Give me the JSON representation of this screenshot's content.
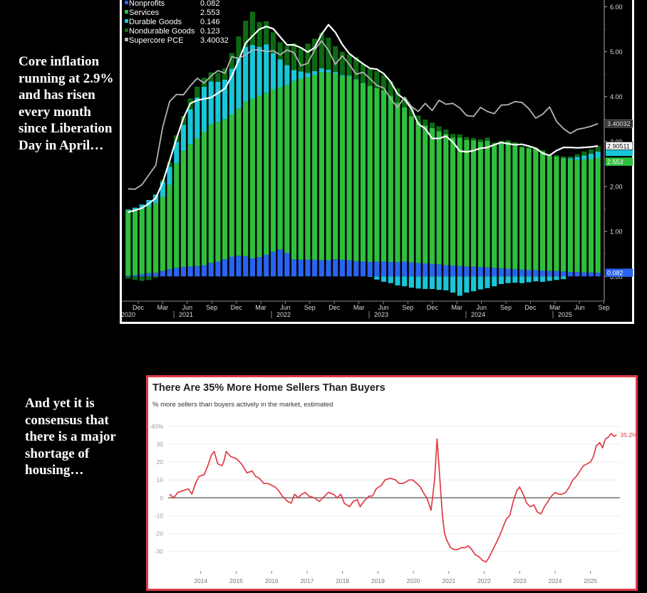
{
  "captions": {
    "top": "Core inflation running at 2.9% and has risen every month since Liberation Day in April…",
    "bottom": "And yet it is consensus that there is a major shortage of housing…"
  },
  "chart_data": [
    {
      "type": "bar",
      "stacked": true,
      "legend": [
        {
          "name": "Nonprofits",
          "value": "0.082",
          "color": "#2a63f0"
        },
        {
          "name": "Services",
          "value": "2.553",
          "color": "#2fbf3e"
        },
        {
          "name": "Durable Goods",
          "value": "0.146",
          "color": "#19c6d6"
        },
        {
          "name": "Nondurable Goods",
          "value": "0.123",
          "color": "#0d6a12"
        },
        {
          "name": "Supercore PCE",
          "value": "3.40032",
          "color": "#b4b4b4"
        }
      ],
      "y_ticks": [
        "6.00",
        "5.00",
        "4.00",
        "3.00",
        "2.00",
        "1.00",
        "0.00"
      ],
      "ylim": [
        -0.55,
        6.15
      ],
      "x_tick_labels": [
        "Dec",
        "Mar",
        "Jun",
        "Sep",
        "Dec",
        "Mar",
        "Jun",
        "Sep",
        "Dec",
        "Mar",
        "Jun",
        "Sep",
        "Dec",
        "Mar",
        "Jun",
        "Sep",
        "Dec",
        "Mar",
        "Jun",
        "Sep"
      ],
      "x_year_labels": [
        "2020",
        "2021",
        "2022",
        "2023",
        "2024",
        "2025"
      ],
      "right_labels": [
        {
          "text": "3.40032",
          "value": 3.40032,
          "style": "supercore"
        },
        {
          "text": "2.90511",
          "value": 2.90511,
          "style": "total"
        },
        {
          "text": "2.553",
          "value": 2.553,
          "style": "services"
        },
        {
          "text": "0.082",
          "value": 0.082,
          "style": "nonprofits"
        }
      ],
      "series": [
        {
          "name": "Nonprofits",
          "values": [
            0.02,
            0.03,
            0.05,
            0.07,
            0.08,
            0.12,
            0.16,
            0.19,
            0.21,
            0.22,
            0.23,
            0.25,
            0.3,
            0.33,
            0.38,
            0.44,
            0.46,
            0.45,
            0.4,
            0.43,
            0.48,
            0.55,
            0.6,
            0.52,
            0.38,
            0.37,
            0.37,
            0.37,
            0.36,
            0.36,
            0.38,
            0.37,
            0.36,
            0.34,
            0.33,
            0.32,
            0.33,
            0.33,
            0.32,
            0.32,
            0.33,
            0.31,
            0.3,
            0.29,
            0.28,
            0.27,
            0.25,
            0.24,
            0.23,
            0.22,
            0.22,
            0.21,
            0.2,
            0.19,
            0.18,
            0.17,
            0.16,
            0.15,
            0.14,
            0.14,
            0.13,
            0.12,
            0.12,
            0.11,
            0.1,
            0.1,
            0.09,
            0.09,
            0.08
          ]
        },
        {
          "name": "Services",
          "values": [
            1.45,
            1.45,
            1.45,
            1.48,
            1.55,
            1.65,
            1.88,
            2.32,
            2.58,
            2.72,
            2.84,
            2.97,
            3.08,
            3.1,
            3.12,
            3.16,
            3.27,
            3.43,
            3.55,
            3.59,
            3.6,
            3.61,
            3.61,
            3.74,
            3.97,
            4.03,
            4.06,
            4.11,
            4.19,
            4.18,
            4.14,
            4.09,
            4.09,
            4.04,
            3.97,
            3.92,
            3.86,
            3.81,
            3.7,
            3.54,
            3.43,
            3.25,
            3.14,
            3.07,
            3.02,
            2.96,
            2.92,
            2.85,
            2.86,
            2.82,
            2.81,
            2.78,
            2.82,
            2.73,
            2.79,
            2.82,
            2.8,
            2.72,
            2.71,
            2.7,
            2.65,
            2.56,
            2.55,
            2.53,
            2.5,
            2.49,
            2.51,
            2.52,
            2.553
          ]
        },
        {
          "name": "Durable Goods",
          "values": [
            0.02,
            0.05,
            0.1,
            0.15,
            0.19,
            0.33,
            0.4,
            0.48,
            0.58,
            0.78,
            0.91,
            1.0,
            0.96,
            0.9,
            0.88,
            1.02,
            1.15,
            1.23,
            1.2,
            1.09,
            1.08,
            0.81,
            0.62,
            0.44,
            0.24,
            0.16,
            0.1,
            0.09,
            0.08,
            0.06,
            0.03,
            0.02,
            0.02,
            0.01,
            0.01,
            -0.01,
            -0.07,
            -0.12,
            -0.15,
            -0.2,
            -0.22,
            -0.25,
            -0.27,
            -0.28,
            -0.28,
            -0.3,
            -0.31,
            -0.36,
            -0.43,
            -0.36,
            -0.33,
            -0.29,
            -0.26,
            -0.22,
            -0.17,
            -0.15,
            -0.14,
            -0.15,
            -0.13,
            -0.11,
            -0.12,
            -0.1,
            -0.08,
            -0.06,
            0.03,
            0.07,
            0.09,
            0.12,
            0.146
          ]
        },
        {
          "name": "Nondurable Goods",
          "values": [
            -0.05,
            -0.08,
            -0.1,
            -0.08,
            -0.03,
            0.05,
            0.1,
            0.15,
            0.2,
            0.24,
            0.24,
            0.2,
            0.2,
            0.2,
            0.25,
            0.35,
            0.46,
            0.58,
            0.74,
            0.55,
            0.52,
            0.46,
            0.38,
            0.43,
            0.6,
            0.52,
            0.65,
            0.72,
            0.79,
            0.71,
            0.57,
            0.52,
            0.47,
            0.49,
            0.41,
            0.38,
            0.38,
            0.34,
            0.32,
            0.32,
            0.22,
            0.18,
            0.14,
            0.13,
            0.12,
            0.11,
            0.1,
            0.08,
            0.07,
            0.06,
            0.05,
            0.06,
            0.07,
            0.06,
            0.05,
            0.04,
            0.03,
            0.03,
            0.03,
            0.03,
            0.03,
            0.03,
            0.03,
            0.03,
            0.04,
            0.06,
            0.09,
            0.1,
            0.123
          ]
        }
      ],
      "lines": [
        {
          "name": "Core PCE",
          "color": "#ffffff",
          "values": [
            1.43,
            1.47,
            1.52,
            1.62,
            1.74,
            2.09,
            2.57,
            3.07,
            3.52,
            3.85,
            3.92,
            3.95,
            3.98,
            4.08,
            4.18,
            4.46,
            4.81,
            5.19,
            5.35,
            5.5,
            5.56,
            5.51,
            5.33,
            5.15,
            5.15,
            5.09,
            4.99,
            5.09,
            5.39,
            5.6,
            5.43,
            5.16,
            4.96,
            4.84,
            4.73,
            4.63,
            4.61,
            4.51,
            4.33,
            4.06,
            3.94,
            3.73,
            3.39,
            3.29,
            3.07,
            3.07,
            3.12,
            2.99,
            2.79,
            2.77,
            2.8,
            2.85,
            2.87,
            2.93,
            2.98,
            2.95,
            2.93,
            2.94,
            2.9,
            2.85,
            2.74,
            2.69,
            2.8,
            2.87,
            2.87,
            2.86,
            2.87,
            2.88,
            2.90511
          ]
        },
        {
          "name": "Supercore PCE",
          "color": "#b4b4b4",
          "values": [
            1.95,
            1.94,
            2.04,
            2.26,
            2.47,
            3.32,
            3.89,
            4.05,
            4.04,
            4.24,
            4.41,
            4.3,
            4.46,
            4.58,
            4.52,
            4.89,
            4.85,
            4.93,
            5.04,
            5.04,
            5.0,
            5.02,
            4.93,
            5.04,
            4.98,
            4.69,
            4.74,
            5.04,
            5.24,
            5.03,
            4.72,
            4.91,
            4.72,
            4.5,
            4.54,
            4.4,
            4.25,
            4.19,
            3.95,
            3.76,
            3.99,
            3.78,
            3.67,
            3.85,
            3.69,
            3.92,
            3.83,
            3.85,
            3.75,
            3.58,
            3.56,
            3.76,
            3.67,
            3.62,
            3.81,
            3.82,
            3.89,
            3.87,
            3.73,
            3.52,
            3.61,
            3.77,
            3.45,
            3.29,
            3.18,
            3.27,
            3.3,
            3.34,
            3.40032
          ]
        }
      ]
    },
    {
      "type": "line",
      "title": "There Are 35% More Home Sellers Than Buyers",
      "subtitle": "% more sellers than buyers actively in the market, estimated",
      "y_ticks": [
        {
          "label": "40%",
          "value": 40
        },
        {
          "label": "30",
          "value": 30
        },
        {
          "label": "20",
          "value": 20
        },
        {
          "label": "10",
          "value": 10
        },
        {
          "label": "0",
          "value": 0
        },
        {
          "label": "-10",
          "value": -10
        },
        {
          "label": "-20",
          "value": -20
        },
        {
          "label": "-30",
          "value": -30
        }
      ],
      "ylim": [
        -41,
        44
      ],
      "xlim": [
        2013.08,
        2025.83
      ],
      "x_ticks": [
        "2014",
        "2015",
        "2016",
        "2017",
        "2018",
        "2019",
        "2020",
        "2021",
        "2022",
        "2023",
        "2024",
        "2025"
      ],
      "end_label": "35.2%",
      "color": "#e03a45",
      "points": [
        [
          2013.12,
          2.0
        ],
        [
          2013.24,
          0.0
        ],
        [
          2013.35,
          3.0
        ],
        [
          2013.5,
          4.0
        ],
        [
          2013.65,
          5.0
        ],
        [
          2013.75,
          2.0
        ],
        [
          2013.85,
          8.0
        ],
        [
          2013.95,
          12.0
        ],
        [
          2014.1,
          13.0
        ],
        [
          2014.2,
          18.0
        ],
        [
          2014.3,
          24.0
        ],
        [
          2014.38,
          26.0
        ],
        [
          2014.48,
          19.0
        ],
        [
          2014.6,
          18.0
        ],
        [
          2014.66,
          21.0
        ],
        [
          2014.72,
          26.0
        ],
        [
          2014.85,
          23.0
        ],
        [
          2015.0,
          22.0
        ],
        [
          2015.15,
          19.0
        ],
        [
          2015.3,
          14.0
        ],
        [
          2015.45,
          15.0
        ],
        [
          2015.55,
          12.0
        ],
        [
          2015.65,
          11.0
        ],
        [
          2015.78,
          8.0
        ],
        [
          2015.9,
          8.0
        ],
        [
          2016.0,
          7.0
        ],
        [
          2016.1,
          6.0
        ],
        [
          2016.2,
          4.0
        ],
        [
          2016.3,
          1.0
        ],
        [
          2016.45,
          -2.0
        ],
        [
          2016.55,
          -3.0
        ],
        [
          2016.65,
          2.0
        ],
        [
          2016.75,
          0.0
        ],
        [
          2016.85,
          2.0
        ],
        [
          2016.95,
          3.0
        ],
        [
          2017.05,
          1.0
        ],
        [
          2017.2,
          0.0
        ],
        [
          2017.35,
          -2.0
        ],
        [
          2017.5,
          1.0
        ],
        [
          2017.6,
          3.0
        ],
        [
          2017.75,
          2.0
        ],
        [
          2017.85,
          0.0
        ],
        [
          2017.95,
          2.0
        ],
        [
          2018.05,
          -3.0
        ],
        [
          2018.2,
          -5.0
        ],
        [
          2018.3,
          -2.0
        ],
        [
          2018.42,
          -1.0
        ],
        [
          2018.5,
          -5.0
        ],
        [
          2018.6,
          -2.0
        ],
        [
          2018.75,
          1.0
        ],
        [
          2018.85,
          1.0
        ],
        [
          2018.95,
          5.0
        ],
        [
          2019.1,
          7.0
        ],
        [
          2019.2,
          10.0
        ],
        [
          2019.35,
          11.0
        ],
        [
          2019.5,
          10.0
        ],
        [
          2019.6,
          8.0
        ],
        [
          2019.7,
          8.0
        ],
        [
          2019.8,
          9.0
        ],
        [
          2019.88,
          10.0
        ],
        [
          2019.98,
          10.0
        ],
        [
          2020.1,
          8.0
        ],
        [
          2020.2,
          6.0
        ],
        [
          2020.28,
          3.0
        ],
        [
          2020.38,
          0.0
        ],
        [
          2020.45,
          -4.0
        ],
        [
          2020.5,
          -7.0
        ],
        [
          2020.6,
          10.0
        ],
        [
          2020.67,
          33.0
        ],
        [
          2020.75,
          10.0
        ],
        [
          2020.82,
          -10.0
        ],
        [
          2020.88,
          -20.0
        ],
        [
          2020.95,
          -24.0
        ],
        [
          2021.05,
          -28.0
        ],
        [
          2021.15,
          -29.0
        ],
        [
          2021.25,
          -29.0
        ],
        [
          2021.35,
          -28.0
        ],
        [
          2021.45,
          -28.0
        ],
        [
          2021.55,
          -27.0
        ],
        [
          2021.65,
          -29.0
        ],
        [
          2021.75,
          -32.0
        ],
        [
          2021.85,
          -33.0
        ],
        [
          2021.95,
          -35.0
        ],
        [
          2022.05,
          -36.0
        ],
        [
          2022.12,
          -34.0
        ],
        [
          2022.22,
          -30.0
        ],
        [
          2022.32,
          -26.0
        ],
        [
          2022.42,
          -22.0
        ],
        [
          2022.52,
          -17.0
        ],
        [
          2022.62,
          -12.0
        ],
        [
          2022.72,
          -10.0
        ],
        [
          2022.82,
          -2.0
        ],
        [
          2022.92,
          4.0
        ],
        [
          2023.0,
          6.0
        ],
        [
          2023.1,
          2.0
        ],
        [
          2023.2,
          -3.0
        ],
        [
          2023.3,
          -5.0
        ],
        [
          2023.4,
          -4.0
        ],
        [
          2023.5,
          -8.0
        ],
        [
          2023.6,
          -9.0
        ],
        [
          2023.7,
          -5.0
        ],
        [
          2023.8,
          -2.0
        ],
        [
          2023.9,
          1.0
        ],
        [
          2024.0,
          3.0
        ],
        [
          2024.1,
          2.0
        ],
        [
          2024.2,
          2.0
        ],
        [
          2024.3,
          3.0
        ],
        [
          2024.4,
          6.0
        ],
        [
          2024.5,
          10.0
        ],
        [
          2024.6,
          12.0
        ],
        [
          2024.7,
          15.0
        ],
        [
          2024.8,
          18.0
        ],
        [
          2024.9,
          19.0
        ],
        [
          2025.0,
          20.0
        ],
        [
          2025.08,
          23.0
        ],
        [
          2025.16,
          29.0
        ],
        [
          2025.26,
          31.0
        ],
        [
          2025.34,
          28.0
        ],
        [
          2025.42,
          33.0
        ],
        [
          2025.5,
          34.0
        ],
        [
          2025.58,
          36.0
        ],
        [
          2025.66,
          34.5
        ],
        [
          2025.74,
          35.2
        ]
      ]
    }
  ]
}
